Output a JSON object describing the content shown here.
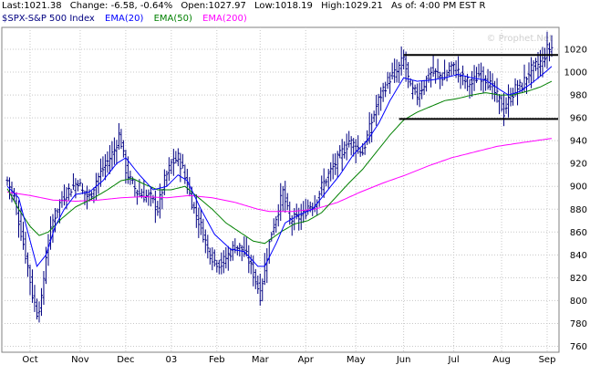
{
  "header": {
    "last": "Last:1021.38",
    "change": "Change: -6.58, -0.64%",
    "open": "Open:1027.97",
    "low": "Low:1018.19",
    "high": "High:1029.21",
    "asof": "As of: 4:00 PM EST R"
  },
  "watermark": "© Prophet.Net",
  "colors": {
    "price": "#000080",
    "ema20": "#0000ff",
    "ema50": "#008000",
    "ema200": "#ff00ff",
    "channel": "#000000",
    "grid": "#c8c8c8"
  },
  "chart_data": {
    "type": "line",
    "title": "",
    "xlabel": "",
    "ylabel": "",
    "ylim": [
      760,
      1030
    ],
    "grid": true,
    "legend_placement": "top-left",
    "yticks": [
      760,
      780,
      800,
      820,
      840,
      860,
      880,
      900,
      920,
      940,
      960,
      980,
      1000,
      1020
    ],
    "xticks": [
      {
        "label": "Oct",
        "index": 10
      },
      {
        "label": "Nov",
        "index": 32
      },
      {
        "label": "Dec",
        "index": 52
      },
      {
        "label": "03",
        "index": 72
      },
      {
        "label": "Feb",
        "index": 92
      },
      {
        "label": "Mar",
        "index": 111
      },
      {
        "label": "Apr",
        "index": 131
      },
      {
        "label": "May",
        "index": 153
      },
      {
        "label": "Jun",
        "index": 174
      },
      {
        "label": "Jul",
        "index": 196
      },
      {
        "label": "Aug",
        "index": 217
      },
      {
        "label": "Sep",
        "index": 237
      }
    ],
    "price_anchors": [
      [
        0,
        905
      ],
      [
        3,
        890
      ],
      [
        6,
        860
      ],
      [
        9,
        830
      ],
      [
        11,
        805
      ],
      [
        13,
        790
      ],
      [
        15,
        800
      ],
      [
        17,
        840
      ],
      [
        20,
        870
      ],
      [
        23,
        885
      ],
      [
        26,
        895
      ],
      [
        29,
        900
      ],
      [
        31,
        905
      ],
      [
        33,
        895
      ],
      [
        36,
        890
      ],
      [
        39,
        905
      ],
      [
        42,
        915
      ],
      [
        45,
        925
      ],
      [
        47,
        932
      ],
      [
        49,
        945
      ],
      [
        50,
        938
      ],
      [
        52,
        915
      ],
      [
        54,
        905
      ],
      [
        57,
        895
      ],
      [
        60,
        892
      ],
      [
        63,
        890
      ],
      [
        66,
        880
      ],
      [
        69,
        905
      ],
      [
        72,
        920
      ],
      [
        75,
        925
      ],
      [
        77,
        915
      ],
      [
        79,
        900
      ],
      [
        82,
        880
      ],
      [
        85,
        865
      ],
      [
        88,
        845
      ],
      [
        91,
        835
      ],
      [
        94,
        832
      ],
      [
        97,
        840
      ],
      [
        100,
        848
      ],
      [
        103,
        845
      ],
      [
        106,
        835
      ],
      [
        109,
        818
      ],
      [
        111,
        805
      ],
      [
        113,
        830
      ],
      [
        116,
        860
      ],
      [
        119,
        880
      ],
      [
        121,
        895
      ],
      [
        124,
        870
      ],
      [
        127,
        872
      ],
      [
        130,
        875
      ],
      [
        132,
        883
      ],
      [
        135,
        885
      ],
      [
        138,
        900
      ],
      [
        141,
        910
      ],
      [
        144,
        920
      ],
      [
        147,
        930
      ],
      [
        150,
        940
      ],
      [
        153,
        935
      ],
      [
        156,
        930
      ],
      [
        159,
        950
      ],
      [
        162,
        970
      ],
      [
        165,
        985
      ],
      [
        168,
        995
      ],
      [
        171,
        1000
      ],
      [
        174,
        1012
      ],
      [
        177,
        985
      ],
      [
        180,
        980
      ],
      [
        183,
        990
      ],
      [
        186,
        1000
      ],
      [
        189,
        998
      ],
      [
        192,
        995
      ],
      [
        195,
        1005
      ],
      [
        198,
        1000
      ],
      [
        201,
        992
      ],
      [
        204,
        990
      ],
      [
        207,
        998
      ],
      [
        210,
        995
      ],
      [
        213,
        985
      ],
      [
        216,
        975
      ],
      [
        218,
        965
      ],
      [
        220,
        975
      ],
      [
        223,
        985
      ],
      [
        226,
        988
      ],
      [
        229,
        1000
      ],
      [
        232,
        1005
      ],
      [
        235,
        1010
      ],
      [
        237,
        1020
      ],
      [
        239,
        1021.38
      ]
    ],
    "ema20_anchors": [
      [
        0,
        900
      ],
      [
        5,
        890
      ],
      [
        9,
        860
      ],
      [
        13,
        830
      ],
      [
        17,
        840
      ],
      [
        21,
        865
      ],
      [
        25,
        880
      ],
      [
        30,
        893
      ],
      [
        36,
        895
      ],
      [
        42,
        905
      ],
      [
        48,
        920
      ],
      [
        52,
        925
      ],
      [
        58,
        910
      ],
      [
        64,
        897
      ],
      [
        70,
        900
      ],
      [
        75,
        910
      ],
      [
        79,
        905
      ],
      [
        85,
        880
      ],
      [
        91,
        858
      ],
      [
        98,
        845
      ],
      [
        104,
        843
      ],
      [
        110,
        830
      ],
      [
        113,
        830
      ],
      [
        118,
        850
      ],
      [
        122,
        868
      ],
      [
        128,
        875
      ],
      [
        134,
        880
      ],
      [
        140,
        895
      ],
      [
        146,
        910
      ],
      [
        152,
        928
      ],
      [
        158,
        940
      ],
      [
        163,
        955
      ],
      [
        168,
        975
      ],
      [
        174,
        995
      ],
      [
        180,
        992
      ],
      [
        186,
        993
      ],
      [
        192,
        995
      ],
      [
        198,
        998
      ],
      [
        204,
        995
      ],
      [
        210,
        993
      ],
      [
        216,
        985
      ],
      [
        220,
        980
      ],
      [
        225,
        983
      ],
      [
        230,
        990
      ],
      [
        235,
        998
      ],
      [
        239,
        1005
      ]
    ],
    "ema50_anchors": [
      [
        0,
        898
      ],
      [
        5,
        880
      ],
      [
        10,
        865
      ],
      [
        14,
        857
      ],
      [
        18,
        860
      ],
      [
        24,
        872
      ],
      [
        30,
        882
      ],
      [
        38,
        890
      ],
      [
        44,
        897
      ],
      [
        50,
        905
      ],
      [
        55,
        907
      ],
      [
        60,
        902
      ],
      [
        66,
        897
      ],
      [
        72,
        897
      ],
      [
        78,
        900
      ],
      [
        84,
        890
      ],
      [
        90,
        880
      ],
      [
        96,
        868
      ],
      [
        102,
        860
      ],
      [
        108,
        852
      ],
      [
        113,
        850
      ],
      [
        120,
        860
      ],
      [
        126,
        867
      ],
      [
        132,
        870
      ],
      [
        138,
        877
      ],
      [
        144,
        890
      ],
      [
        150,
        903
      ],
      [
        156,
        915
      ],
      [
        162,
        930
      ],
      [
        168,
        945
      ],
      [
        174,
        958
      ],
      [
        180,
        965
      ],
      [
        186,
        970
      ],
      [
        192,
        975
      ],
      [
        198,
        977
      ],
      [
        204,
        980
      ],
      [
        210,
        982
      ],
      [
        216,
        980
      ],
      [
        222,
        980
      ],
      [
        228,
        983
      ],
      [
        234,
        987
      ],
      [
        239,
        992
      ]
    ],
    "ema200_anchors": [
      [
        0,
        895
      ],
      [
        10,
        892
      ],
      [
        20,
        888
      ],
      [
        30,
        887
      ],
      [
        40,
        888
      ],
      [
        50,
        890
      ],
      [
        60,
        891
      ],
      [
        70,
        890
      ],
      [
        80,
        892
      ],
      [
        90,
        890
      ],
      [
        100,
        886
      ],
      [
        110,
        880
      ],
      [
        115,
        878
      ],
      [
        125,
        878
      ],
      [
        135,
        880
      ],
      [
        145,
        886
      ],
      [
        155,
        895
      ],
      [
        165,
        903
      ],
      [
        175,
        910
      ],
      [
        185,
        918
      ],
      [
        195,
        925
      ],
      [
        205,
        930
      ],
      [
        215,
        935
      ],
      [
        225,
        938
      ],
      [
        239,
        942
      ]
    ],
    "channel_top": [
      1015,
      174,
      239
    ],
    "channel_bottom": [
      959,
      172,
      239
    ],
    "series": [
      {
        "name": "$SPX-S&P 500 Index",
        "values_key": "price_anchors",
        "color": "#000080",
        "style": "ohlc"
      },
      {
        "name": "EMA(20)",
        "values_key": "ema20_anchors",
        "color": "#0000ff",
        "style": "line"
      },
      {
        "name": "EMA(50)",
        "values_key": "ema50_anchors",
        "color": "#008000",
        "style": "line"
      },
      {
        "name": "EMA(200)",
        "values_key": "ema200_anchors",
        "color": "#ff00ff",
        "style": "line"
      }
    ],
    "legend": [
      "$SPX-S&P 500 Index",
      "EMA(20)",
      "EMA(50)",
      "EMA(200)"
    ]
  }
}
